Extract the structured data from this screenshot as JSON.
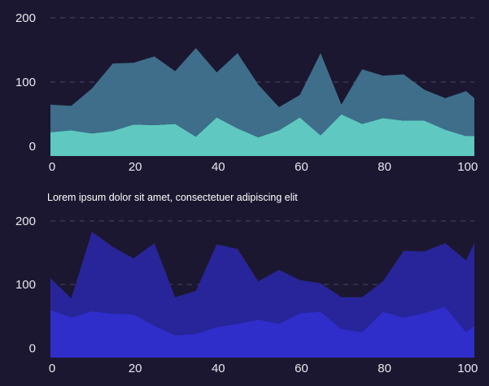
{
  "caption": "Lorem ipsum dolor sit amet, consectetuer adipiscing elit",
  "chart_data": [
    {
      "type": "area",
      "stacked": true,
      "x": [
        0,
        5,
        10,
        15,
        20,
        25,
        30,
        35,
        40,
        45,
        50,
        55,
        60,
        65,
        70,
        75,
        80,
        85,
        90,
        95,
        100,
        102
      ],
      "xlim": [
        0,
        102
      ],
      "ylim": [
        -15,
        210
      ],
      "xticks": [
        0,
        20,
        40,
        60,
        80,
        100
      ],
      "yticks": [
        0,
        100,
        200
      ],
      "grid": true,
      "series": [
        {
          "color": "#5fc9c1",
          "values": [
            22,
            25,
            20,
            24,
            34,
            33,
            35,
            15,
            45,
            28,
            14,
            25,
            45,
            17,
            50,
            35,
            44,
            40,
            40,
            26,
            16,
            16
          ]
        },
        {
          "color": "#3e6e8a",
          "values": [
            43,
            38,
            70,
            105,
            96,
            107,
            82,
            138,
            70,
            117,
            82,
            36,
            35,
            128,
            15,
            85,
            66,
            72,
            48,
            49,
            70,
            59
          ]
        }
      ]
    },
    {
      "type": "area",
      "stacked": true,
      "x": [
        0,
        5,
        10,
        15,
        20,
        25,
        30,
        35,
        40,
        45,
        50,
        55,
        60,
        65,
        70,
        75,
        80,
        85,
        90,
        95,
        100,
        102
      ],
      "xlim": [
        0,
        102
      ],
      "ylim": [
        -15,
        210
      ],
      "xticks": [
        0,
        20,
        40,
        60,
        80,
        100
      ],
      "yticks": [
        0,
        100,
        200
      ],
      "grid": true,
      "series": [
        {
          "color": "#2f2ecb",
          "values": [
            60,
            48,
            58,
            54,
            53,
            35,
            20,
            22,
            33,
            38,
            45,
            38,
            55,
            57,
            30,
            25,
            57,
            48,
            55,
            65,
            25,
            35
          ]
        },
        {
          "color": "#28259a",
          "values": [
            50,
            30,
            125,
            105,
            88,
            130,
            60,
            68,
            130,
            118,
            60,
            85,
            52,
            45,
            50,
            55,
            48,
            105,
            97,
            100,
            113,
            130
          ]
        }
      ]
    }
  ]
}
